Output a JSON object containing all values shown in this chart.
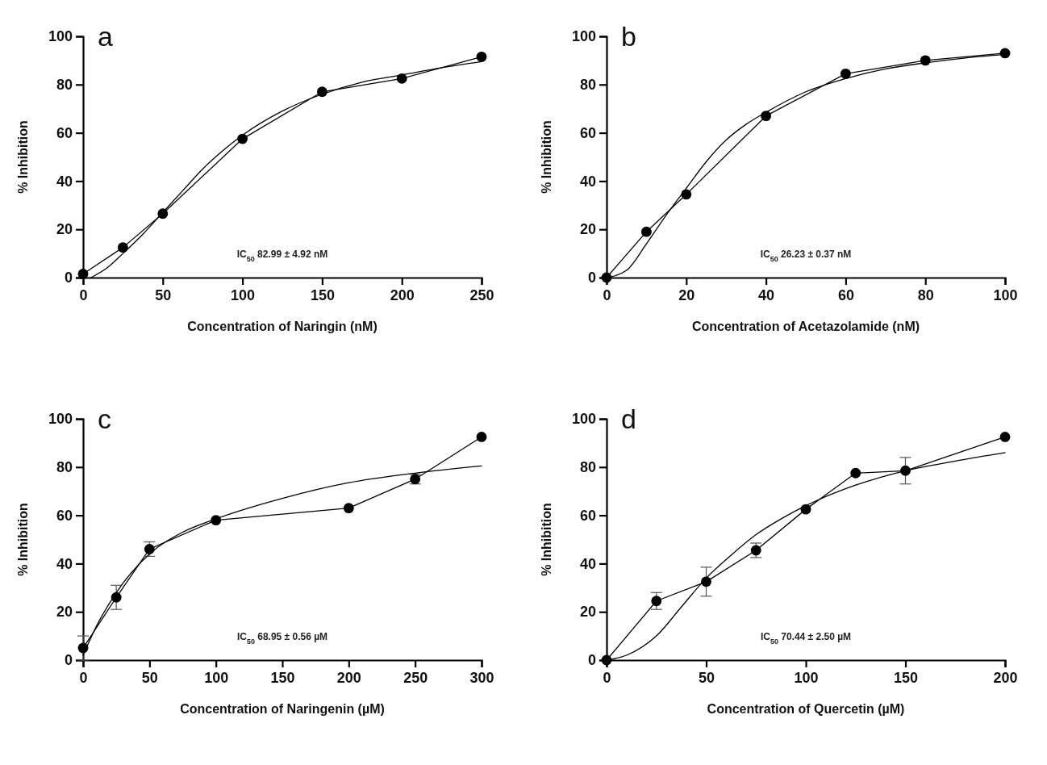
{
  "chart_data": [
    {
      "type": "line",
      "title": "a",
      "xlabel": "Concentration of Naringin (nM)",
      "ylabel": "% Inhibition",
      "annotations": [
        "IC$_{50}$ 82.99 ± 4.92 nM"
      ],
      "xlim": [
        0,
        250
      ],
      "xticks": [
        0,
        50,
        100,
        150,
        200,
        250
      ],
      "ylim": [
        0,
        100
      ],
      "yticks": [
        0,
        20,
        40,
        60,
        80,
        100
      ],
      "grid": false,
      "line_style": "solid",
      "series": [
        {
          "color": "#000000",
          "marker": "circle",
          "x": [
            0,
            25,
            50,
            100,
            150,
            200,
            250
          ],
          "values": [
            1.5,
            12.5,
            26.5,
            57.5,
            77,
            82.5,
            91.5
          ]
        },
        {
          "color": "#000000",
          "marker": "none",
          "x": [
            5,
            15,
            25,
            37.5,
            50,
            62.5,
            75,
            87.5,
            100,
            125,
            150,
            175,
            200,
            225,
            250
          ],
          "values": [
            0,
            4,
            10,
            18,
            27,
            36,
            45,
            52.5,
            59,
            69,
            76,
            81,
            84,
            87,
            89.5
          ]
        }
      ]
    },
    {
      "type": "line",
      "title": "b",
      "xlabel": "Concentration of Acetazolamide (nM)",
      "ylabel": "% Inhibition",
      "annotations": [
        "IC$_{50}$ 26.23 ± 0.37 nM"
      ],
      "xlim": [
        0,
        100
      ],
      "xticks": [
        0,
        20,
        40,
        60,
        80,
        100
      ],
      "ylim": [
        0,
        100
      ],
      "yticks": [
        0,
        20,
        40,
        60,
        80,
        100
      ],
      "grid": false,
      "line_style": "solid",
      "series": [
        {
          "color": "#000000",
          "marker": "circle",
          "x": [
            0,
            10,
            20,
            40,
            60,
            80,
            100
          ],
          "values": [
            0,
            19,
            34.5,
            67,
            84.5,
            90,
            93
          ]
        },
        {
          "color": "#000000",
          "marker": "none",
          "x": [
            0,
            5,
            10,
            15,
            20,
            25,
            30,
            35,
            40,
            50,
            60,
            70,
            80,
            90,
            100
          ],
          "values": [
            0,
            3,
            14,
            26,
            37,
            48,
            57,
            63.5,
            68.5,
            77,
            82.5,
            86.5,
            89,
            91,
            92.5
          ]
        }
      ]
    },
    {
      "type": "line",
      "title": "c",
      "xlabel": "Concentration of Naringenin (µM)",
      "ylabel": "% Inhibition",
      "annotations": [
        "IC$_{50}$ 68.95 ± 0.56  µM"
      ],
      "xlim": [
        0,
        300
      ],
      "xticks": [
        0,
        50,
        100,
        150,
        200,
        250,
        300
      ],
      "ylim": [
        0,
        100
      ],
      "yticks": [
        0,
        20,
        40,
        60,
        80,
        100
      ],
      "grid": false,
      "line_style": "solid",
      "series": [
        {
          "color": "#000000",
          "marker": "circle",
          "x": [
            0,
            25,
            50,
            100,
            200,
            250,
            300
          ],
          "values": [
            5,
            26,
            46,
            58,
            63,
            75,
            92.5
          ],
          "errors": [
            5,
            5,
            3,
            null,
            null,
            2,
            null
          ]
        },
        {
          "color": "#000000",
          "marker": "none",
          "x": [
            0,
            10,
            25,
            50,
            75,
            100,
            150,
            200,
            250,
            300
          ],
          "values": [
            2,
            14,
            28,
            44,
            53,
            58.5,
            67,
            73.5,
            77.5,
            80.5
          ]
        }
      ]
    },
    {
      "type": "line",
      "title": "d",
      "xlabel": "Concentration of Quercetin (µM)",
      "ylabel": "% Inhibition",
      "annotations": [
        "IC$_{50}$ 70.44 ± 2.50 µM"
      ],
      "xlim": [
        0,
        200
      ],
      "xticks": [
        0,
        50,
        100,
        150,
        200
      ],
      "ylim": [
        0,
        100
      ],
      "yticks": [
        0,
        20,
        40,
        60,
        80,
        100
      ],
      "grid": false,
      "line_style": "solid",
      "series": [
        {
          "color": "#000000",
          "marker": "circle",
          "x": [
            0,
            25,
            50,
            75,
            100,
            125,
            150,
            200
          ],
          "values": [
            0,
            24.5,
            32.5,
            45.5,
            62.5,
            77.5,
            78.5,
            92.5
          ],
          "errors": [
            null,
            3.5,
            6,
            3,
            null,
            null,
            5.5,
            null
          ]
        },
        {
          "color": "#000000",
          "marker": "none",
          "x": [
            0,
            10,
            25,
            37.5,
            50,
            62.5,
            75,
            87.5,
            100,
            125,
            150,
            175,
            200
          ],
          "values": [
            0,
            2,
            10,
            22,
            34,
            43.5,
            52,
            58.5,
            64,
            72.5,
            78.5,
            82.5,
            86
          ]
        }
      ]
    }
  ]
}
